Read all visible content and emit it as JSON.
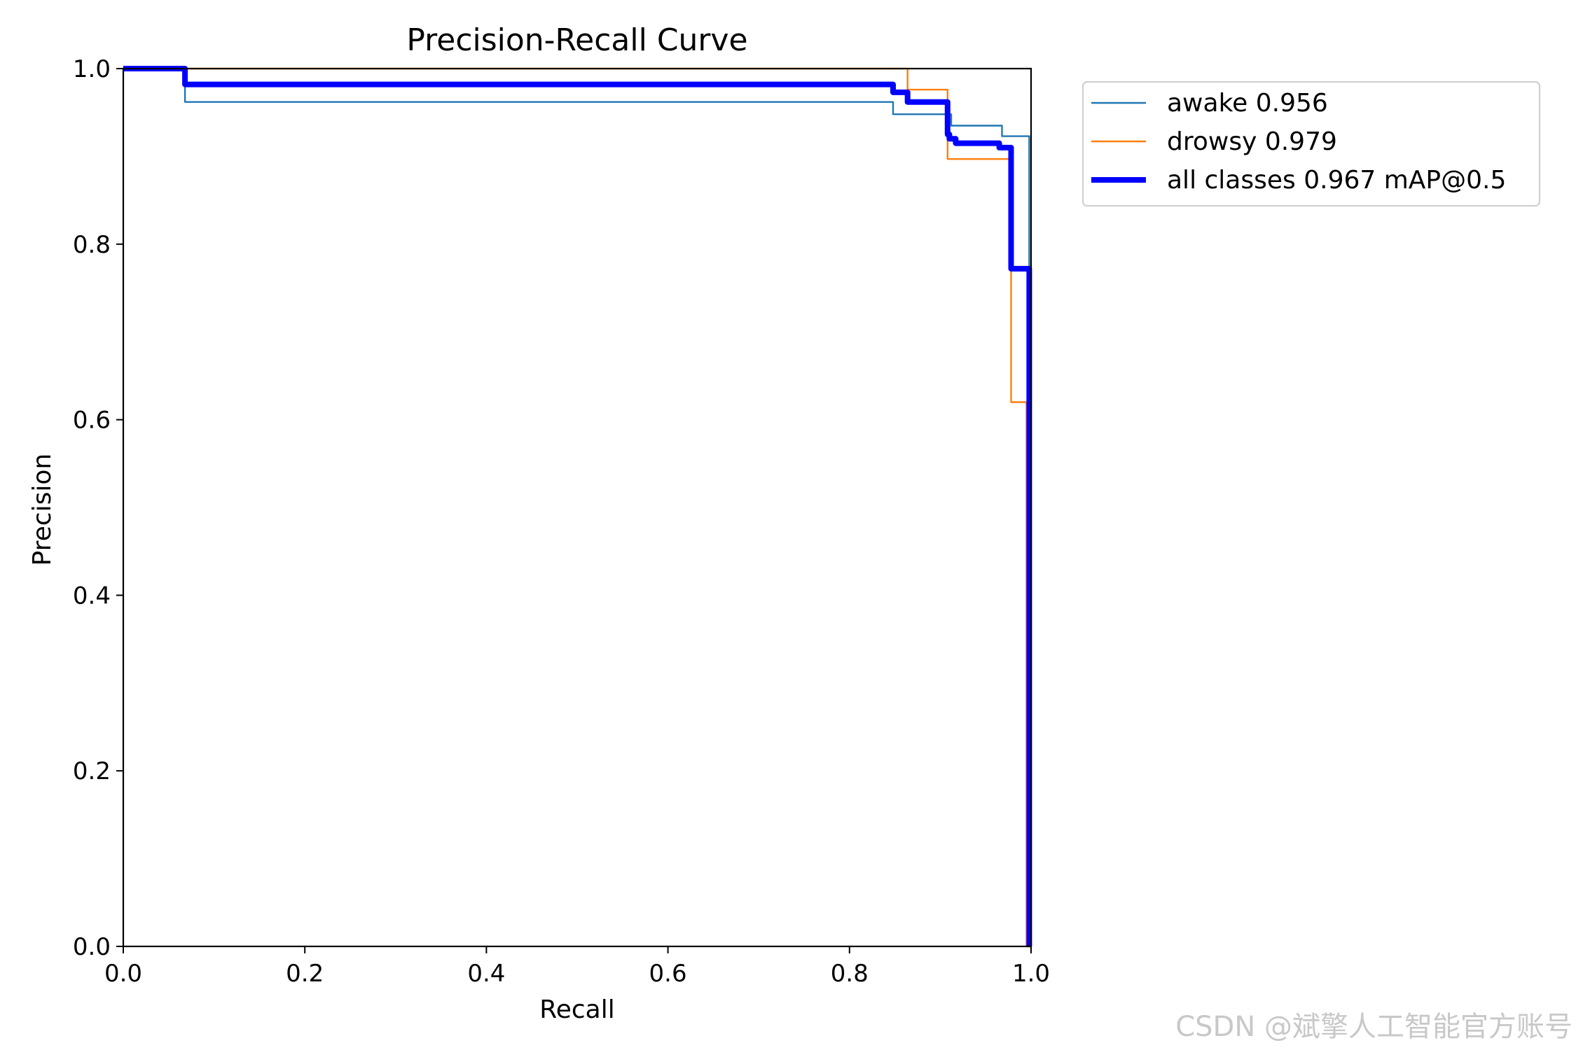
{
  "chart_data": {
    "type": "line",
    "title": "Precision-Recall Curve",
    "xlabel": "Recall",
    "ylabel": "Precision",
    "xlim": [
      0,
      1
    ],
    "ylim": [
      0,
      1
    ],
    "xticks": [
      "0.0",
      "0.2",
      "0.4",
      "0.6",
      "0.8",
      "1.0"
    ],
    "yticks": [
      "0.0",
      "0.2",
      "0.4",
      "0.6",
      "0.8",
      "1.0"
    ],
    "grid": false,
    "legend_position": "outside-top-right",
    "series": [
      {
        "name": "awake 0.956",
        "color": "#1f77b4",
        "width": "thin",
        "x": [
          0,
          0.068,
          0.068,
          0.848,
          0.848,
          0.912,
          0.912,
          0.968,
          0.968,
          0.998,
          0.998,
          1.0
        ],
        "y": [
          1.0,
          1.0,
          0.962,
          0.962,
          0.948,
          0.948,
          0.935,
          0.935,
          0.923,
          0.923,
          0.0,
          0.0
        ]
      },
      {
        "name": "drowsy 0.979",
        "color": "#ff7f0e",
        "width": "thin",
        "x": [
          0,
          0.864,
          0.864,
          0.908,
          0.908,
          0.975,
          0.975,
          0.978,
          0.978,
          0.995,
          0.995,
          1.0
        ],
        "y": [
          1.0,
          1.0,
          0.976,
          0.976,
          0.897,
          0.897,
          0.897,
          0.897,
          0.62,
          0.62,
          0.0,
          0.0
        ]
      },
      {
        "name": "all classes 0.967 mAP@0.5",
        "color": "#0000ff",
        "width": "thick",
        "x": [
          0,
          0.068,
          0.068,
          0.848,
          0.848,
          0.864,
          0.864,
          0.908,
          0.908,
          0.91,
          0.91,
          0.917,
          0.917,
          0.965,
          0.965,
          0.975,
          0.975,
          0.978,
          0.978,
          0.998,
          0.998
        ],
        "y": [
          1.0,
          1.0,
          0.982,
          0.982,
          0.973,
          0.973,
          0.962,
          0.962,
          0.925,
          0.925,
          0.92,
          0.92,
          0.915,
          0.915,
          0.91,
          0.91,
          0.91,
          0.91,
          0.772,
          0.772,
          0.0
        ]
      }
    ]
  },
  "watermark": "CSDN @斌擎人工智能官方账号"
}
